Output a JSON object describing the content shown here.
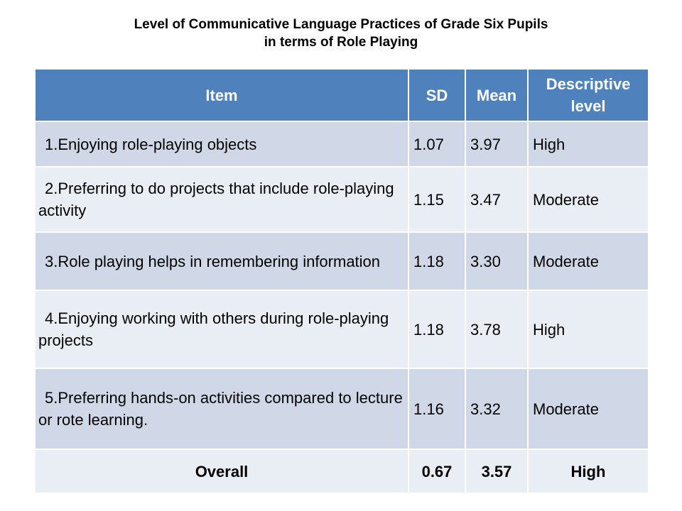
{
  "title": {
    "line1": "Level of Communicative Language Practices of Grade Six Pupils",
    "line2": "in terms of Role Playing"
  },
  "table": {
    "headers": {
      "item": "Item",
      "sd": "SD",
      "mean": "Mean",
      "level": "Descriptive level"
    },
    "rows": [
      {
        "item": "1.Enjoying role-playing objects",
        "sd": "1.07",
        "mean": "3.97",
        "level": "High"
      },
      {
        "item": "2.Preferring to do projects that   include role-playing  activity",
        "sd": "1.15",
        "mean": "3.47",
        "level": "Moderate"
      },
      {
        "item": "3.Role playing helps in remembering information",
        "sd": "1.18",
        "mean": "3.30",
        "level": "Moderate"
      },
      {
        "item": "4.Enjoying working with others  during role-playing projects",
        "sd": "1.18",
        "mean": "3.78",
        "level": "High"
      },
      {
        "item": "5.Preferring hands-on activities compared to lecture  or  rote learning.",
        "sd": "1.16",
        "mean": "3.32",
        "level": "Moderate"
      }
    ],
    "overall": {
      "label": "Overall",
      "sd": "0.67",
      "mean": "3.57",
      "level": "High"
    }
  },
  "colors": {
    "header_bg": "#4f81bd",
    "row_dark": "#d0d8e8",
    "row_light": "#e9edf4"
  }
}
